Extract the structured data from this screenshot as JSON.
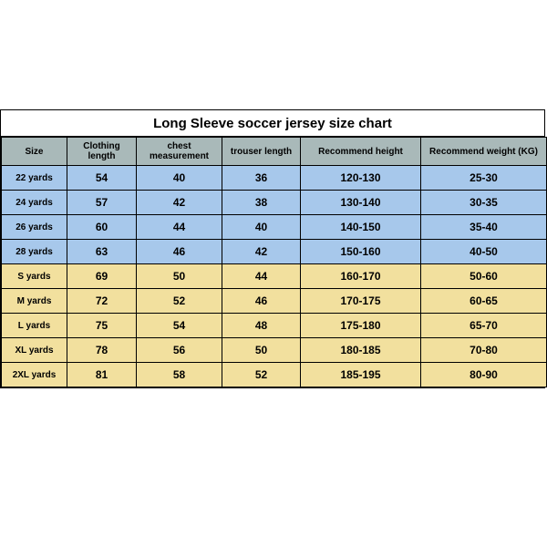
{
  "title": "Long Sleeve soccer jersey size chart",
  "colors": {
    "header_bg": "#a9b9b9",
    "kids_bg": "#a7c8eb",
    "adult_bg": "#f2e09e",
    "background": "#ffffff",
    "border": "#000000"
  },
  "columns": [
    "Size",
    "Clothing length",
    "chest measurement",
    "trouser length",
    "Recommend height",
    "Recommend weight (KG)"
  ],
  "rows": [
    {
      "group": "kids",
      "cells": [
        "22 yards",
        "54",
        "40",
        "36",
        "120-130",
        "25-30"
      ]
    },
    {
      "group": "kids",
      "cells": [
        "24 yards",
        "57",
        "42",
        "38",
        "130-140",
        "30-35"
      ]
    },
    {
      "group": "kids",
      "cells": [
        "26 yards",
        "60",
        "44",
        "40",
        "140-150",
        "35-40"
      ]
    },
    {
      "group": "kids",
      "cells": [
        "28 yards",
        "63",
        "46",
        "42",
        "150-160",
        "40-50"
      ]
    },
    {
      "group": "adult",
      "cells": [
        "S yards",
        "69",
        "50",
        "44",
        "160-170",
        "50-60"
      ]
    },
    {
      "group": "adult",
      "cells": [
        "M yards",
        "72",
        "52",
        "46",
        "170-175",
        "60-65"
      ]
    },
    {
      "group": "adult",
      "cells": [
        "L yards",
        "75",
        "54",
        "48",
        "175-180",
        "65-70"
      ]
    },
    {
      "group": "adult",
      "cells": [
        "XL yards",
        "78",
        "56",
        "50",
        "180-185",
        "70-80"
      ]
    },
    {
      "group": "adult",
      "cells": [
        "2XL yards",
        "81",
        "58",
        "52",
        "185-195",
        "80-90"
      ]
    }
  ]
}
